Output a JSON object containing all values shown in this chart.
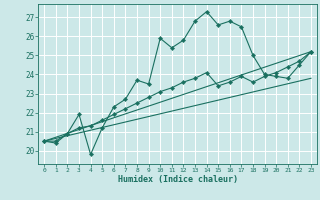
{
  "xlabel": "Humidex (Indice chaleur)",
  "background_color": "#cce8e8",
  "grid_color": "#ffffff",
  "line_color": "#1a7060",
  "xlim": [
    -0.5,
    23.5
  ],
  "ylim": [
    19.3,
    27.7
  ],
  "xticks": [
    0,
    1,
    2,
    3,
    4,
    5,
    6,
    7,
    8,
    9,
    10,
    11,
    12,
    13,
    14,
    15,
    16,
    17,
    18,
    19,
    20,
    21,
    22,
    23
  ],
  "yticks": [
    20,
    21,
    22,
    23,
    24,
    25,
    26,
    27
  ],
  "curve1_x": [
    0,
    1,
    2,
    3,
    4,
    5,
    6,
    7,
    8,
    9,
    10,
    11,
    12,
    13,
    14,
    15,
    16,
    17,
    18,
    19,
    20,
    21,
    22,
    23
  ],
  "curve1_y": [
    20.5,
    20.4,
    20.9,
    21.9,
    19.8,
    21.2,
    22.3,
    22.7,
    23.7,
    23.5,
    25.9,
    25.4,
    25.8,
    26.8,
    27.3,
    26.6,
    26.8,
    26.5,
    25.0,
    24.0,
    23.9,
    23.8,
    24.5,
    25.2
  ],
  "curve2_x": [
    0,
    1,
    2,
    3,
    4,
    5,
    6,
    7,
    8,
    9,
    10,
    11,
    12,
    13,
    14,
    15,
    16,
    17,
    18,
    19,
    20,
    21,
    22,
    23
  ],
  "curve2_y": [
    20.5,
    20.5,
    20.9,
    21.2,
    21.3,
    21.6,
    21.9,
    22.2,
    22.5,
    22.8,
    23.1,
    23.3,
    23.6,
    23.8,
    24.1,
    23.4,
    23.6,
    23.9,
    23.6,
    23.9,
    24.1,
    24.4,
    24.7,
    25.2
  ],
  "line1_x": [
    0,
    23
  ],
  "line1_y": [
    20.5,
    25.2
  ],
  "line2_x": [
    0,
    23
  ],
  "line2_y": [
    20.5,
    23.8
  ]
}
